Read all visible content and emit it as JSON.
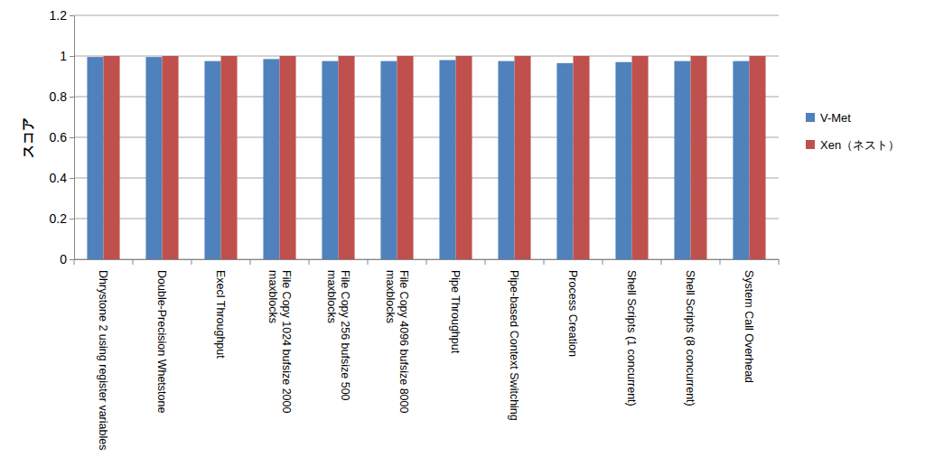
{
  "chart_data": {
    "type": "bar",
    "y_label": "スコア",
    "categories": [
      "Dhrystone 2 using register variables",
      "Double-Precision Whetstone",
      "Execl Throughput",
      "File Copy 1024 bufsize 2000 maxblocks",
      "File Copy 256 bufsize 500 maxblocks",
      "File Copy 4096 bufsize 8000 maxblocks",
      "Pipe Throughput",
      "Pipe-based Context Switching",
      "Process Creation",
      "Shell Scripts (1 concurrent)",
      "Shell Scripts (8 concurrent)",
      "System Call Overhead"
    ],
    "series": [
      {
        "name": "V-Met",
        "color": "#4f81bd",
        "values": [
          0.995,
          0.995,
          0.975,
          0.985,
          0.975,
          0.975,
          0.98,
          0.975,
          0.965,
          0.97,
          0.975,
          0.975
        ]
      },
      {
        "name": "Xen（ネスト）",
        "color": "#c0504d",
        "values": [
          1,
          1,
          1,
          1,
          1,
          1,
          1,
          1,
          1,
          1,
          1,
          1
        ]
      }
    ],
    "ylim": [
      0,
      1.2
    ],
    "yticks": [
      0,
      0.2,
      0.4,
      0.6,
      0.8,
      1,
      1.2
    ],
    "grid": true,
    "legend": "right"
  }
}
